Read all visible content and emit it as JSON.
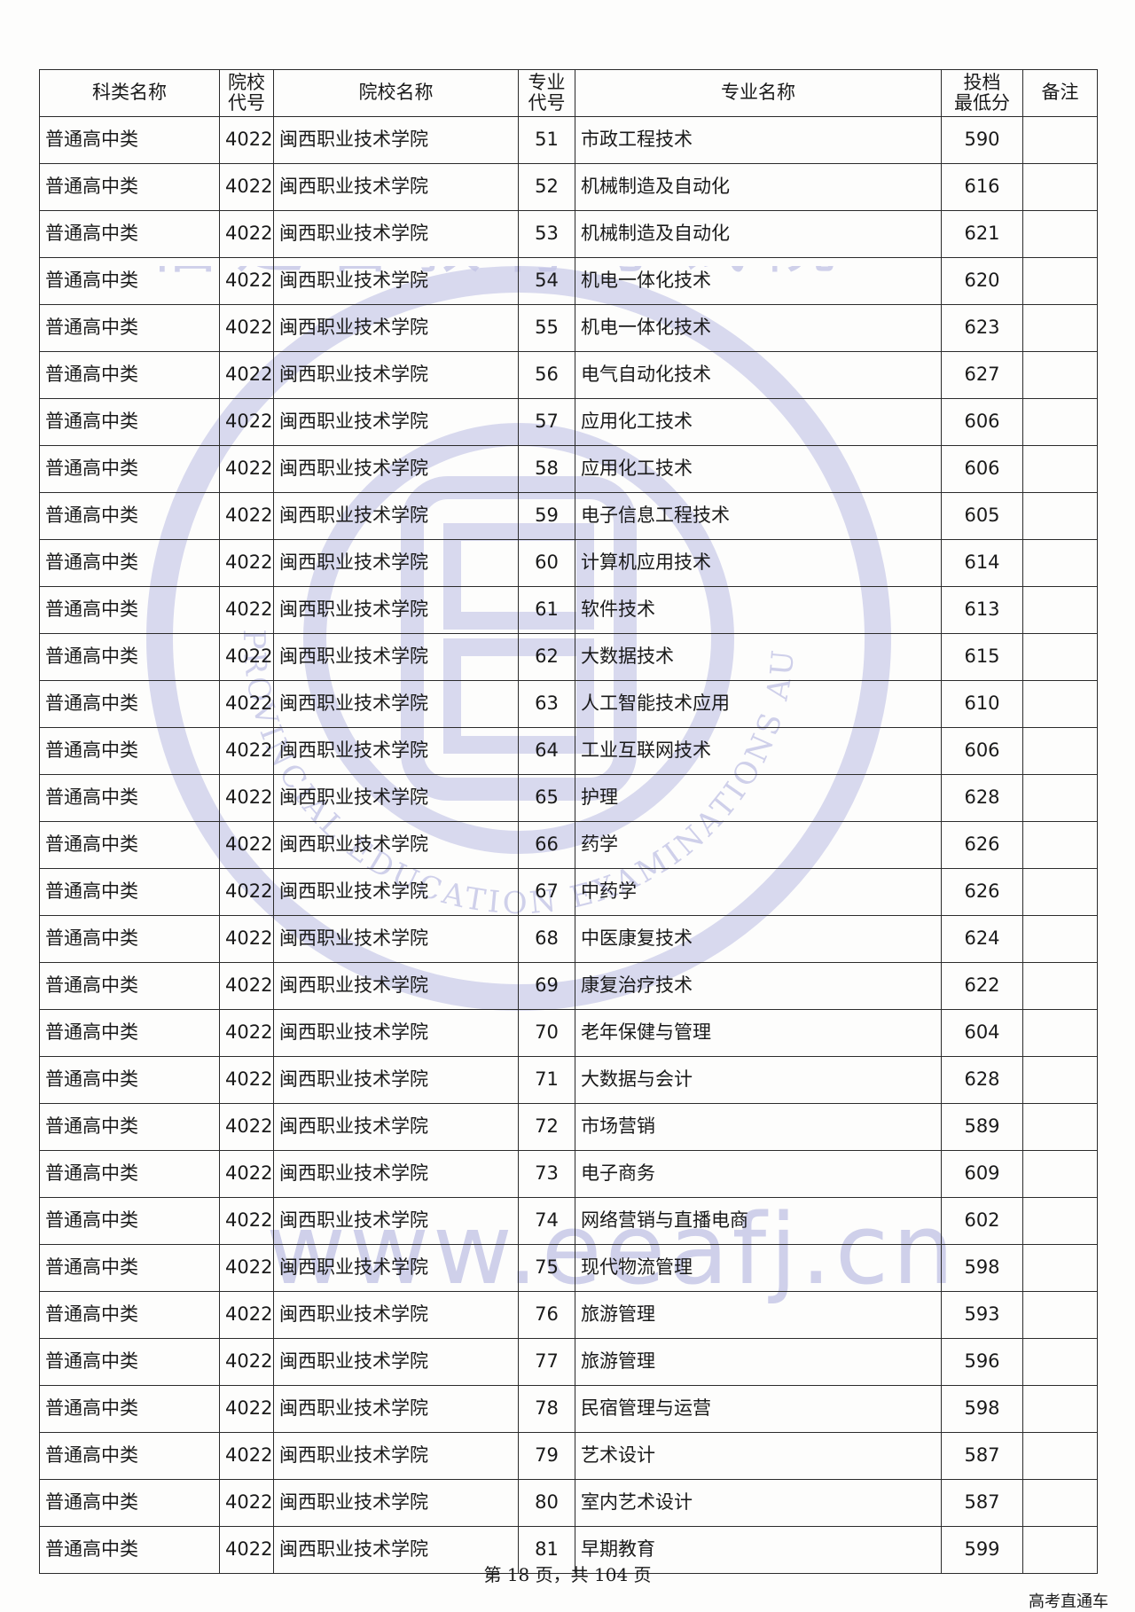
{
  "watermark": {
    "seal_top_text": "福建省教育考试院",
    "seal_bottom_text": "FUJIAN PROVINCIAL EDUCATION EXAMINATIONS AUTHORITY",
    "url_text": "www.eeafj.cn",
    "color": "#c9cae8"
  },
  "table": {
    "headers": {
      "category": "科类名称",
      "school_code": "院校代号",
      "school_name": "院校名称",
      "major_code": "专业代号",
      "major_name": "专业名称",
      "min_score": "投档最低分",
      "remarks": "备注"
    },
    "rows": [
      {
        "category": "普通高中类",
        "school_code": "4022",
        "school_name": "闽西职业技术学院",
        "major_code": "51",
        "major_name": "市政工程技术",
        "min_score": "590",
        "remarks": ""
      },
      {
        "category": "普通高中类",
        "school_code": "4022",
        "school_name": "闽西职业技术学院",
        "major_code": "52",
        "major_name": "机械制造及自动化",
        "min_score": "616",
        "remarks": ""
      },
      {
        "category": "普通高中类",
        "school_code": "4022",
        "school_name": "闽西职业技术学院",
        "major_code": "53",
        "major_name": "机械制造及自动化",
        "min_score": "621",
        "remarks": ""
      },
      {
        "category": "普通高中类",
        "school_code": "4022",
        "school_name": "闽西职业技术学院",
        "major_code": "54",
        "major_name": "机电一体化技术",
        "min_score": "620",
        "remarks": ""
      },
      {
        "category": "普通高中类",
        "school_code": "4022",
        "school_name": "闽西职业技术学院",
        "major_code": "55",
        "major_name": "机电一体化技术",
        "min_score": "623",
        "remarks": ""
      },
      {
        "category": "普通高中类",
        "school_code": "4022",
        "school_name": "闽西职业技术学院",
        "major_code": "56",
        "major_name": "电气自动化技术",
        "min_score": "627",
        "remarks": ""
      },
      {
        "category": "普通高中类",
        "school_code": "4022",
        "school_name": "闽西职业技术学院",
        "major_code": "57",
        "major_name": "应用化工技术",
        "min_score": "606",
        "remarks": ""
      },
      {
        "category": "普通高中类",
        "school_code": "4022",
        "school_name": "闽西职业技术学院",
        "major_code": "58",
        "major_name": "应用化工技术",
        "min_score": "606",
        "remarks": ""
      },
      {
        "category": "普通高中类",
        "school_code": "4022",
        "school_name": "闽西职业技术学院",
        "major_code": "59",
        "major_name": "电子信息工程技术",
        "min_score": "605",
        "remarks": ""
      },
      {
        "category": "普通高中类",
        "school_code": "4022",
        "school_name": "闽西职业技术学院",
        "major_code": "60",
        "major_name": "计算机应用技术",
        "min_score": "614",
        "remarks": ""
      },
      {
        "category": "普通高中类",
        "school_code": "4022",
        "school_name": "闽西职业技术学院",
        "major_code": "61",
        "major_name": "软件技术",
        "min_score": "613",
        "remarks": ""
      },
      {
        "category": "普通高中类",
        "school_code": "4022",
        "school_name": "闽西职业技术学院",
        "major_code": "62",
        "major_name": "大数据技术",
        "min_score": "615",
        "remarks": ""
      },
      {
        "category": "普通高中类",
        "school_code": "4022",
        "school_name": "闽西职业技术学院",
        "major_code": "63",
        "major_name": "人工智能技术应用",
        "min_score": "610",
        "remarks": ""
      },
      {
        "category": "普通高中类",
        "school_code": "4022",
        "school_name": "闽西职业技术学院",
        "major_code": "64",
        "major_name": "工业互联网技术",
        "min_score": "606",
        "remarks": ""
      },
      {
        "category": "普通高中类",
        "school_code": "4022",
        "school_name": "闽西职业技术学院",
        "major_code": "65",
        "major_name": "护理",
        "min_score": "628",
        "remarks": ""
      },
      {
        "category": "普通高中类",
        "school_code": "4022",
        "school_name": "闽西职业技术学院",
        "major_code": "66",
        "major_name": "药学",
        "min_score": "626",
        "remarks": ""
      },
      {
        "category": "普通高中类",
        "school_code": "4022",
        "school_name": "闽西职业技术学院",
        "major_code": "67",
        "major_name": "中药学",
        "min_score": "626",
        "remarks": ""
      },
      {
        "category": "普通高中类",
        "school_code": "4022",
        "school_name": "闽西职业技术学院",
        "major_code": "68",
        "major_name": "中医康复技术",
        "min_score": "624",
        "remarks": ""
      },
      {
        "category": "普通高中类",
        "school_code": "4022",
        "school_name": "闽西职业技术学院",
        "major_code": "69",
        "major_name": "康复治疗技术",
        "min_score": "622",
        "remarks": ""
      },
      {
        "category": "普通高中类",
        "school_code": "4022",
        "school_name": "闽西职业技术学院",
        "major_code": "70",
        "major_name": "老年保健与管理",
        "min_score": "604",
        "remarks": ""
      },
      {
        "category": "普通高中类",
        "school_code": "4022",
        "school_name": "闽西职业技术学院",
        "major_code": "71",
        "major_name": "大数据与会计",
        "min_score": "628",
        "remarks": ""
      },
      {
        "category": "普通高中类",
        "school_code": "4022",
        "school_name": "闽西职业技术学院",
        "major_code": "72",
        "major_name": "市场营销",
        "min_score": "589",
        "remarks": ""
      },
      {
        "category": "普通高中类",
        "school_code": "4022",
        "school_name": "闽西职业技术学院",
        "major_code": "73",
        "major_name": "电子商务",
        "min_score": "609",
        "remarks": ""
      },
      {
        "category": "普通高中类",
        "school_code": "4022",
        "school_name": "闽西职业技术学院",
        "major_code": "74",
        "major_name": "网络营销与直播电商",
        "min_score": "602",
        "remarks": ""
      },
      {
        "category": "普通高中类",
        "school_code": "4022",
        "school_name": "闽西职业技术学院",
        "major_code": "75",
        "major_name": "现代物流管理",
        "min_score": "598",
        "remarks": ""
      },
      {
        "category": "普通高中类",
        "school_code": "4022",
        "school_name": "闽西职业技术学院",
        "major_code": "76",
        "major_name": "旅游管理",
        "min_score": "593",
        "remarks": ""
      },
      {
        "category": "普通高中类",
        "school_code": "4022",
        "school_name": "闽西职业技术学院",
        "major_code": "77",
        "major_name": "旅游管理",
        "min_score": "596",
        "remarks": ""
      },
      {
        "category": "普通高中类",
        "school_code": "4022",
        "school_name": "闽西职业技术学院",
        "major_code": "78",
        "major_name": "民宿管理与运营",
        "min_score": "598",
        "remarks": ""
      },
      {
        "category": "普通高中类",
        "school_code": "4022",
        "school_name": "闽西职业技术学院",
        "major_code": "79",
        "major_name": "艺术设计",
        "min_score": "587",
        "remarks": ""
      },
      {
        "category": "普通高中类",
        "school_code": "4022",
        "school_name": "闽西职业技术学院",
        "major_code": "80",
        "major_name": "室内艺术设计",
        "min_score": "587",
        "remarks": ""
      },
      {
        "category": "普通高中类",
        "school_code": "4022",
        "school_name": "闽西职业技术学院",
        "major_code": "81",
        "major_name": "早期教育",
        "min_score": "599",
        "remarks": ""
      }
    ]
  },
  "footer": {
    "page_info": "第 18 页，共 104 页"
  },
  "corner_note": "高考直通车"
}
